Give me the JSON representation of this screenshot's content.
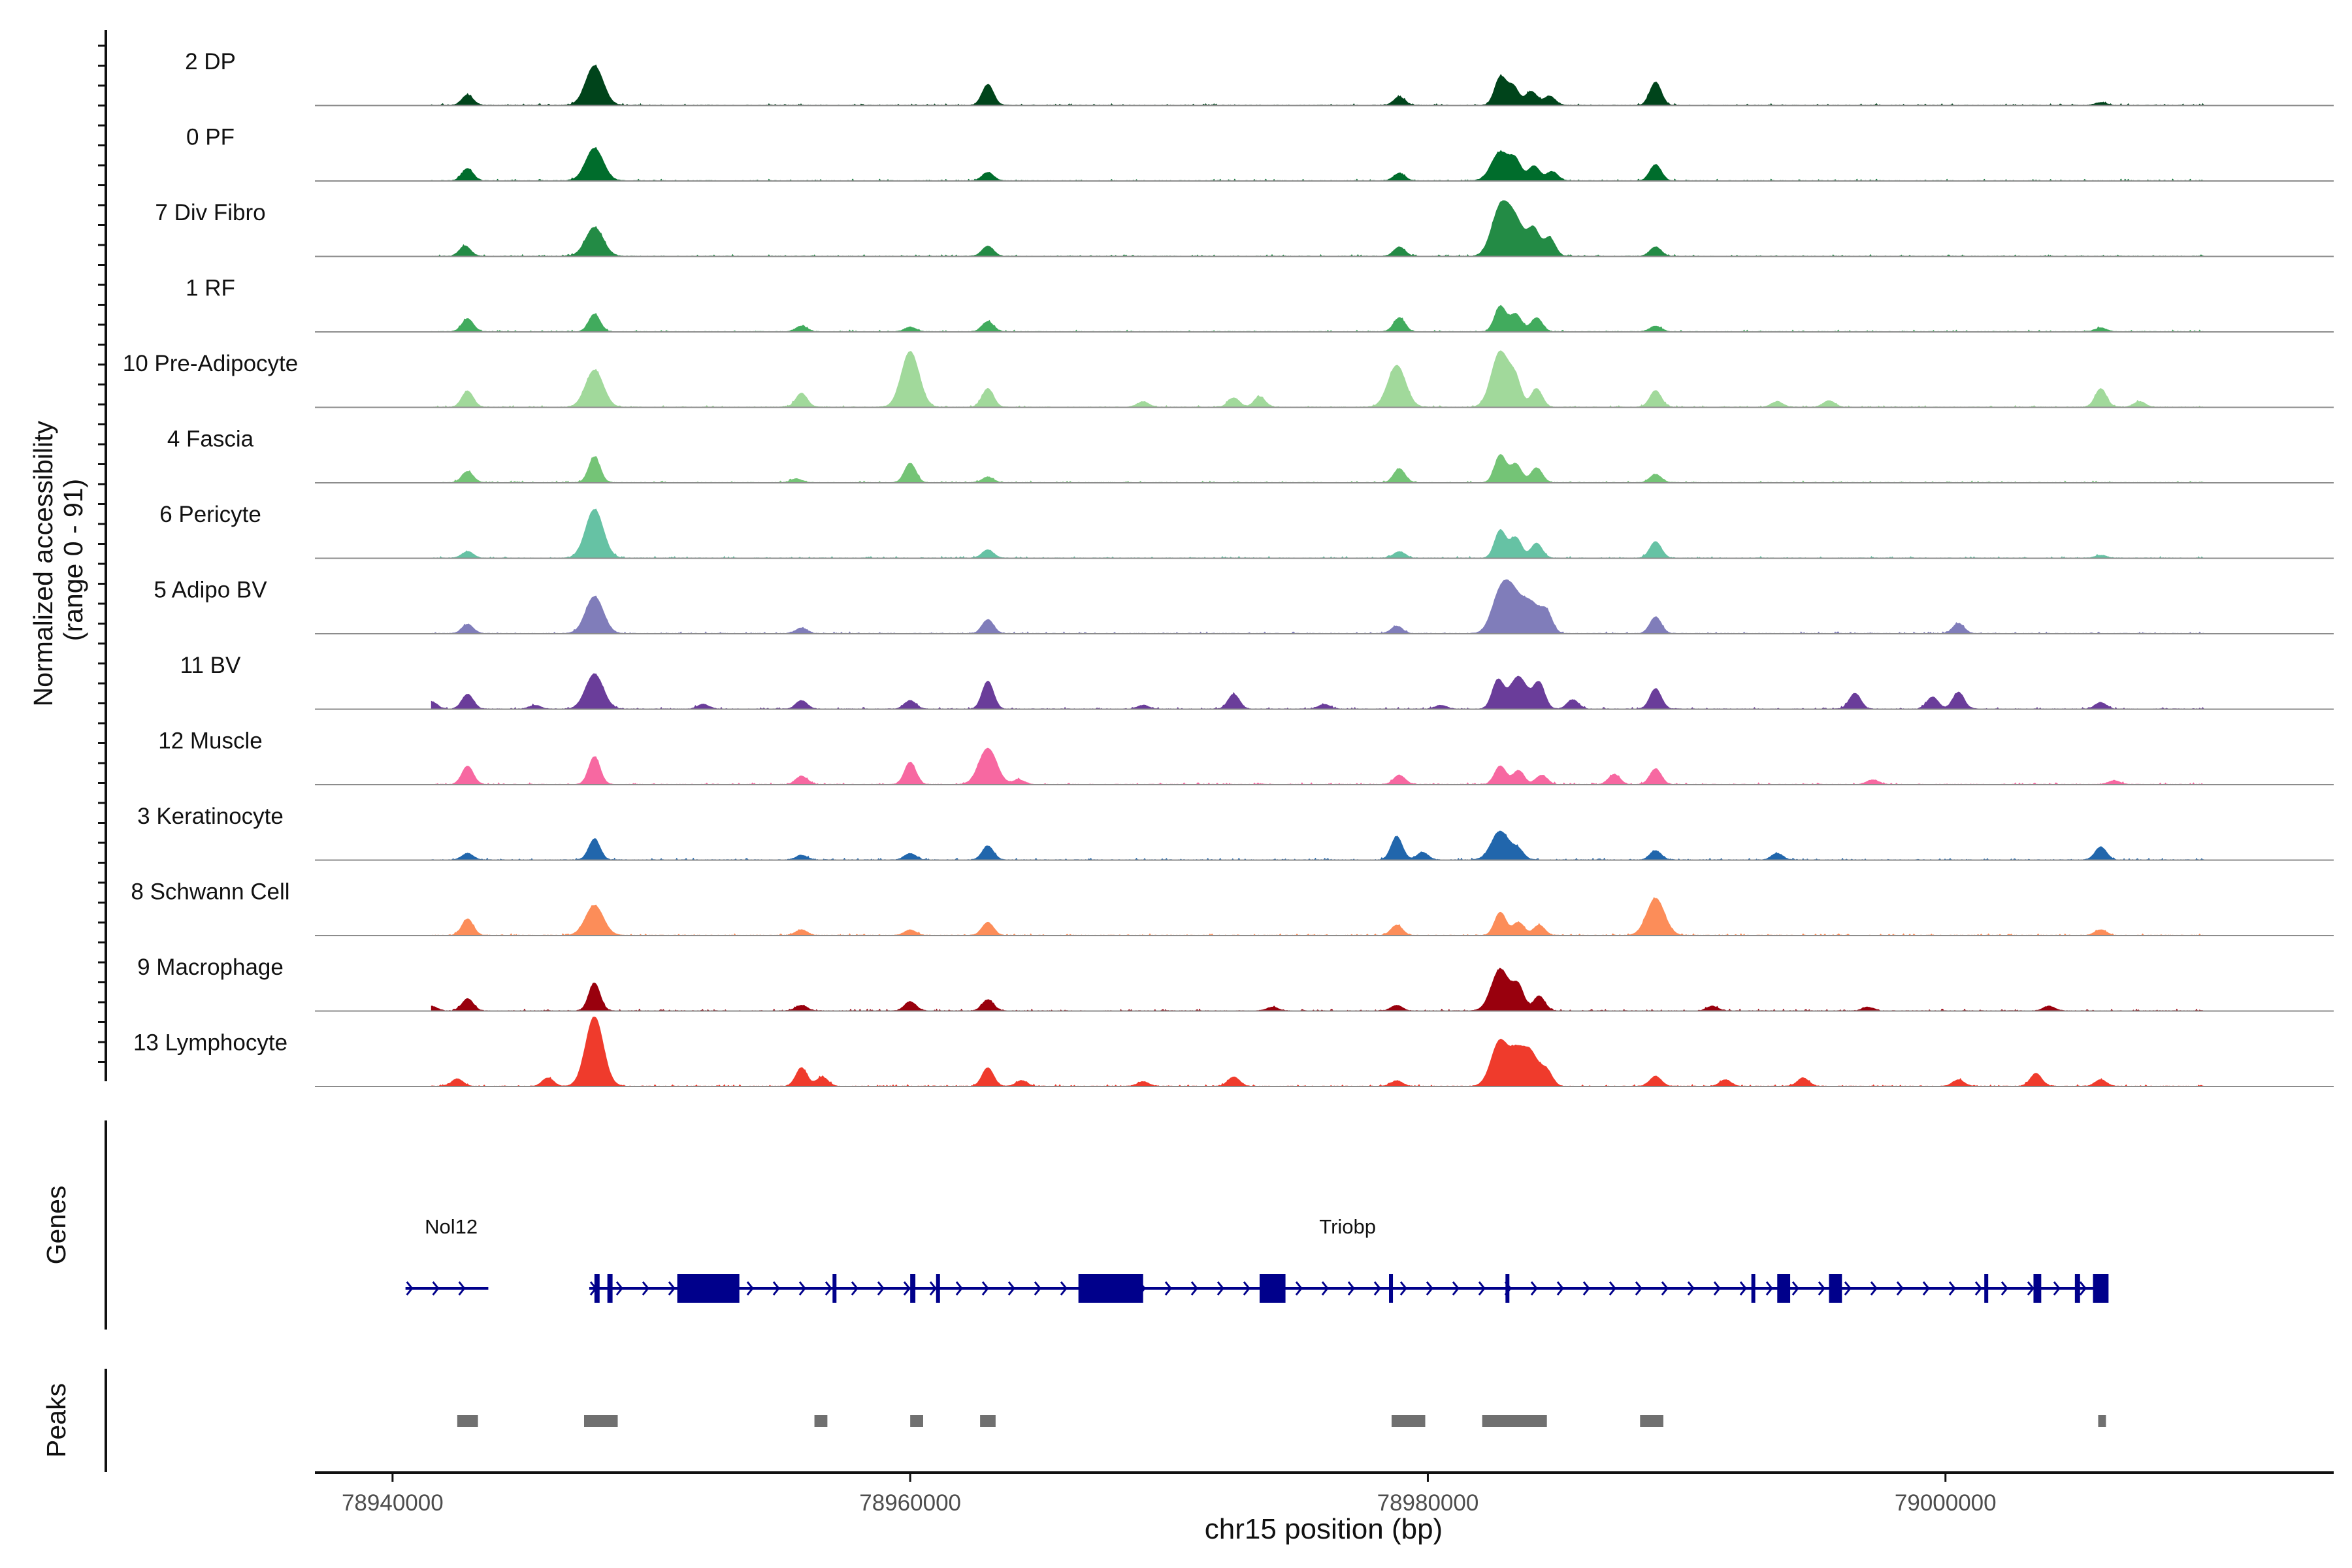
{
  "chart_data": {
    "type": "area",
    "title": "",
    "ylabel_line1": "Normalized accessibility",
    "ylabel_line2": "(range 0 - 91)",
    "ylim": [
      0,
      91
    ],
    "xlabel": "chr15 position (bp)",
    "chromosome": "chr15",
    "xlim": [
      78937000,
      79015000
    ],
    "xticks": [
      78940000,
      78960000,
      78980000,
      79000000
    ],
    "xtick_labels": [
      "78940000",
      "78960000",
      "78980000",
      "79000000"
    ],
    "genes_title": "Genes",
    "peaks_title": "Peaks",
    "tracks": [
      {
        "name": "2 DP",
        "color": "#00441b",
        "peaks": [
          [
            78942900,
            22
          ],
          [
            78947800,
            85
          ],
          [
            78963000,
            45
          ],
          [
            78978900,
            18
          ],
          [
            78982800,
            60
          ],
          [
            78983300,
            40
          ],
          [
            78984000,
            30
          ],
          [
            78984700,
            20
          ],
          [
            78988800,
            50
          ],
          [
            79006000,
            6
          ]
        ]
      },
      {
        "name": "0 PF",
        "color": "#006d2c",
        "peaks": [
          [
            78942900,
            26
          ],
          [
            78947800,
            70
          ],
          [
            78963000,
            18
          ],
          [
            78978900,
            16
          ],
          [
            78982800,
            62
          ],
          [
            78983400,
            38
          ],
          [
            78984100,
            32
          ],
          [
            78984800,
            20
          ],
          [
            78988800,
            35
          ]
        ]
      },
      {
        "name": "7 Div Fibro",
        "color": "#238b45",
        "peaks": [
          [
            78942800,
            22
          ],
          [
            78947800,
            62
          ],
          [
            78963000,
            22
          ],
          [
            78978900,
            20
          ],
          [
            78982800,
            100
          ],
          [
            78983400,
            70
          ],
          [
            78984100,
            55
          ],
          [
            78984700,
            40
          ],
          [
            78988800,
            20
          ]
        ]
      },
      {
        "name": "1 RF",
        "color": "#41ab5d",
        "peaks": [
          [
            78942900,
            28
          ],
          [
            78947800,
            38
          ],
          [
            78955800,
            12
          ],
          [
            78960000,
            10
          ],
          [
            78963000,
            22
          ],
          [
            78978900,
            30
          ],
          [
            78982800,
            55
          ],
          [
            78983400,
            38
          ],
          [
            78984200,
            30
          ],
          [
            78988800,
            12
          ],
          [
            79006000,
            8
          ]
        ]
      },
      {
        "name": "10 Pre-Adipocyte",
        "color": "#a1d99b",
        "peaks": [
          [
            78942900,
            35
          ],
          [
            78947800,
            80
          ],
          [
            78955800,
            30
          ],
          [
            78960000,
            120
          ],
          [
            78963000,
            40
          ],
          [
            78969000,
            12
          ],
          [
            78972500,
            20
          ],
          [
            78973500,
            22
          ],
          [
            78978800,
            90
          ],
          [
            78982800,
            120
          ],
          [
            78983400,
            50
          ],
          [
            78984200,
            40
          ],
          [
            78988800,
            36
          ],
          [
            78993500,
            12
          ],
          [
            78995500,
            14
          ],
          [
            79006000,
            40
          ],
          [
            79007500,
            12
          ]
        ]
      },
      {
        "name": "4 Fascia",
        "color": "#74c476",
        "peaks": [
          [
            78942900,
            24
          ],
          [
            78947800,
            56
          ],
          [
            78955600,
            8
          ],
          [
            78960000,
            42
          ],
          [
            78963000,
            12
          ],
          [
            78978900,
            30
          ],
          [
            78982800,
            60
          ],
          [
            78983400,
            40
          ],
          [
            78984200,
            32
          ],
          [
            78988800,
            18
          ]
        ]
      },
      {
        "name": "6 Pericyte",
        "color": "#66c2a4",
        "peaks": [
          [
            78942900,
            14
          ],
          [
            78947800,
            105
          ],
          [
            78963000,
            18
          ],
          [
            78978900,
            14
          ],
          [
            78982800,
            60
          ],
          [
            78983400,
            44
          ],
          [
            78984200,
            32
          ],
          [
            78988800,
            36
          ],
          [
            79006000,
            6
          ]
        ]
      },
      {
        "name": "5 Adipo BV",
        "color": "#807dba",
        "peaks": [
          [
            78942900,
            20
          ],
          [
            78947800,
            80
          ],
          [
            78955800,
            12
          ],
          [
            78963000,
            30
          ],
          [
            78978800,
            16
          ],
          [
            78982800,
            80
          ],
          [
            78983300,
            70
          ],
          [
            78984000,
            62
          ],
          [
            78984600,
            40
          ],
          [
            78988800,
            36
          ],
          [
            79000500,
            22
          ]
        ]
      },
      {
        "name": "11 BV",
        "color": "#6a3d9a",
        "peaks": [
          [
            78941500,
            16
          ],
          [
            78942900,
            32
          ],
          [
            78945500,
            8
          ],
          [
            78947800,
            75
          ],
          [
            78952000,
            10
          ],
          [
            78955800,
            18
          ],
          [
            78960000,
            18
          ],
          [
            78963000,
            60
          ],
          [
            78969000,
            8
          ],
          [
            78972500,
            32
          ],
          [
            78976000,
            10
          ],
          [
            78980500,
            8
          ],
          [
            78982700,
            60
          ],
          [
            78983500,
            70
          ],
          [
            78984300,
            55
          ],
          [
            78985600,
            20
          ],
          [
            78988800,
            44
          ],
          [
            78996500,
            34
          ],
          [
            78999500,
            26
          ],
          [
            79000500,
            36
          ],
          [
            79006000,
            14
          ]
        ]
      },
      {
        "name": "12 Muscle",
        "color": "#f768a1",
        "peaks": [
          [
            78942900,
            40
          ],
          [
            78947800,
            60
          ],
          [
            78955800,
            18
          ],
          [
            78960000,
            48
          ],
          [
            78963000,
            78
          ],
          [
            78964200,
            10
          ],
          [
            78978900,
            20
          ],
          [
            78982800,
            40
          ],
          [
            78983500,
            30
          ],
          [
            78984400,
            20
          ],
          [
            78987200,
            22
          ],
          [
            78988800,
            34
          ],
          [
            78997200,
            10
          ],
          [
            79006500,
            8
          ]
        ]
      },
      {
        "name": "3 Keratinocyte",
        "color": "#2166ac",
        "peaks": [
          [
            78942900,
            14
          ],
          [
            78947800,
            45
          ],
          [
            78955800,
            10
          ],
          [
            78960000,
            14
          ],
          [
            78963000,
            30
          ],
          [
            78978800,
            50
          ],
          [
            78979800,
            16
          ],
          [
            78982800,
            62
          ],
          [
            78983500,
            20
          ],
          [
            78988800,
            20
          ],
          [
            78993500,
            14
          ],
          [
            79006000,
            28
          ]
        ]
      },
      {
        "name": "8 Schwann Cell",
        "color": "#fc8d59",
        "peaks": [
          [
            78942900,
            35
          ],
          [
            78947800,
            65
          ],
          [
            78955800,
            12
          ],
          [
            78960000,
            12
          ],
          [
            78963000,
            28
          ],
          [
            78978800,
            22
          ],
          [
            78982800,
            50
          ],
          [
            78983500,
            28
          ],
          [
            78984300,
            22
          ],
          [
            78988800,
            80
          ],
          [
            79006000,
            12
          ]
        ]
      },
      {
        "name": "9 Macrophage",
        "color": "#99000d",
        "peaks": [
          [
            78941500,
            10
          ],
          [
            78942900,
            26
          ],
          [
            78947800,
            60
          ],
          [
            78955800,
            12
          ],
          [
            78960000,
            20
          ],
          [
            78963000,
            24
          ],
          [
            78974000,
            8
          ],
          [
            78978800,
            12
          ],
          [
            78982800,
            90
          ],
          [
            78983500,
            50
          ],
          [
            78984300,
            32
          ],
          [
            78991000,
            10
          ],
          [
            78997000,
            8
          ],
          [
            79004000,
            10
          ]
        ]
      },
      {
        "name": "13 Lymphocyte",
        "color": "#ef3b2c",
        "peaks": [
          [
            78941000,
            12
          ],
          [
            78942500,
            16
          ],
          [
            78946000,
            18
          ],
          [
            78947800,
            150
          ],
          [
            78955800,
            40
          ],
          [
            78956600,
            20
          ],
          [
            78963000,
            40
          ],
          [
            78964300,
            12
          ],
          [
            78969000,
            10
          ],
          [
            78972500,
            20
          ],
          [
            78978800,
            12
          ],
          [
            78982800,
            100
          ],
          [
            78983400,
            40
          ],
          [
            78983900,
            80
          ],
          [
            78984600,
            30
          ],
          [
            78988800,
            22
          ],
          [
            78991500,
            14
          ],
          [
            78994500,
            18
          ],
          [
            79000500,
            14
          ],
          [
            79003500,
            28
          ],
          [
            79006000,
            14
          ]
        ]
      }
    ],
    "genes": [
      {
        "name": "Nol12",
        "start": 78940500,
        "end": 78943700,
        "strand": "+",
        "exons": []
      },
      {
        "name": "Triobp",
        "start": 78947600,
        "end": 79006200,
        "strand": "+",
        "exons": [
          [
            78947800,
            78948000
          ],
          [
            78948300,
            78948500
          ],
          [
            78951000,
            78953400
          ],
          [
            78957000,
            78957100
          ],
          [
            78960000,
            78960200
          ],
          [
            78961000,
            78961100
          ],
          [
            78966500,
            78969000
          ],
          [
            78973500,
            78974500
          ],
          [
            78978500,
            78978600
          ],
          [
            78983000,
            78983100
          ],
          [
            78992500,
            78992600
          ],
          [
            78993500,
            78994000
          ],
          [
            78995500,
            78996000
          ],
          [
            79001500,
            79001600
          ],
          [
            79003400,
            79003700
          ],
          [
            79005000,
            79005200
          ],
          [
            79005700,
            79006300
          ]
        ]
      }
    ],
    "peak_regions": [
      [
        78942500,
        78943300
      ],
      [
        78947400,
        78948700
      ],
      [
        78956300,
        78956800
      ],
      [
        78960000,
        78960500
      ],
      [
        78962700,
        78963300
      ],
      [
        78978600,
        78979900
      ],
      [
        78982100,
        78984600
      ],
      [
        78988200,
        78989100
      ],
      [
        79005900,
        79006200
      ]
    ]
  }
}
